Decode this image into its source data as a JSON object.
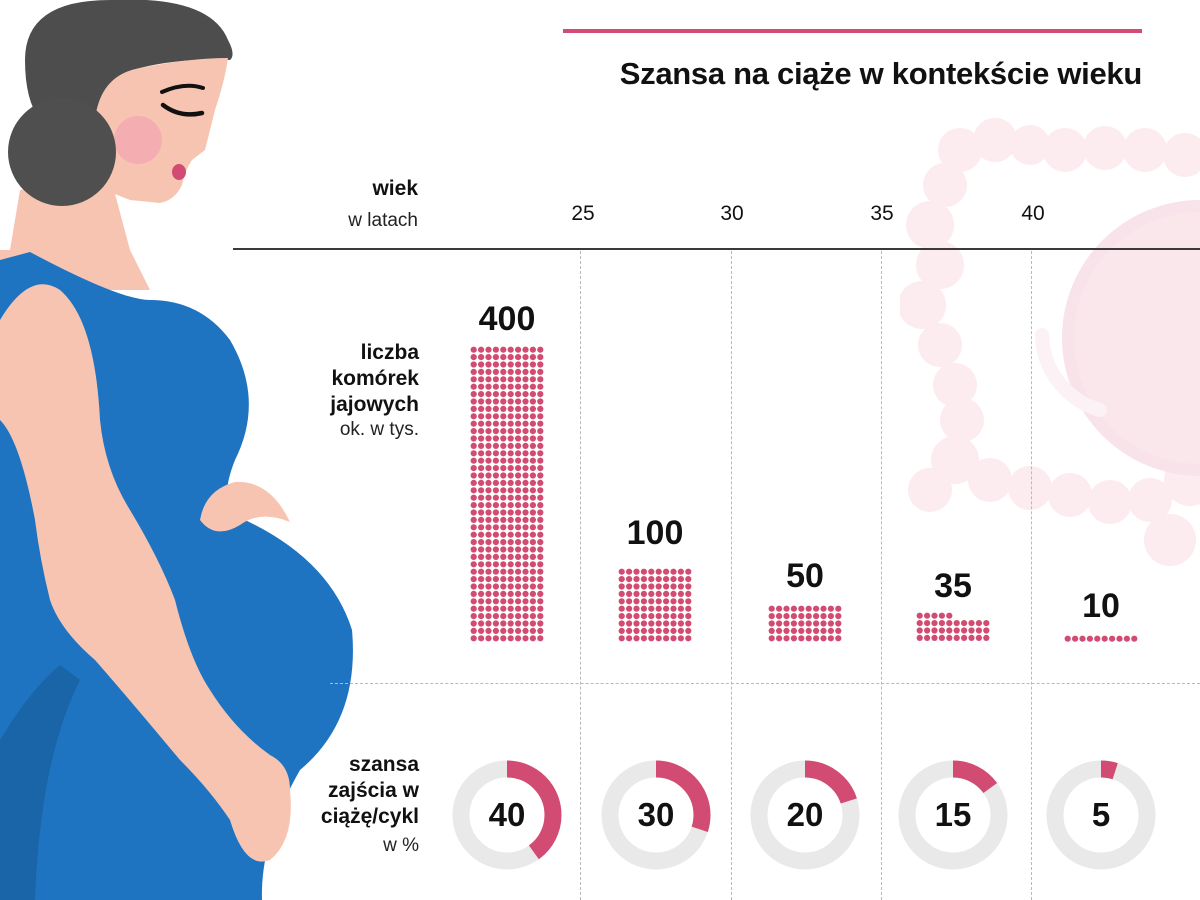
{
  "title": "Szansa na ciąże w kontekście wieku",
  "colors": {
    "accent": "#d14b72",
    "donut_track": "#e9e9e9",
    "dress": "#1e74c1",
    "dress_shadow": "#1a64a8",
    "skin": "#f7c4b2",
    "hair": "#4d4d4d",
    "egg_bg": "#fbe6ec"
  },
  "header": {
    "age_label_bold": "wiek",
    "age_label_sub": "w latach",
    "ages": [
      "25",
      "30",
      "35",
      "40"
    ]
  },
  "rows": {
    "eggs": {
      "label_lines": [
        "liczba",
        "komórek",
        "jajowych"
      ],
      "sub": "ok. w tys."
    },
    "chance": {
      "label_lines": [
        "szansa",
        "zajścia w",
        "ciążę/cykl"
      ],
      "sub": "w %"
    }
  },
  "chart_data": [
    {
      "type": "bar",
      "title": "liczba komórek jajowych (ok. w tys.)",
      "style": "pictogram dot grid, 10 dots per row, each dot = 1 thousand",
      "categories": [
        "<25",
        "25-30",
        "30-35",
        "35-40",
        ">40"
      ],
      "values": [
        400,
        100,
        50,
        35,
        10
      ],
      "labels": [
        "400",
        "100",
        "50",
        "35",
        "10"
      ],
      "xlabel": "wiek w latach",
      "age_ticks": [
        "25",
        "30",
        "35",
        "40"
      ],
      "unit": "tys."
    },
    {
      "type": "pie",
      "title": "szansa zajścia w ciążę/cykl (w %)",
      "style": "donut gauges",
      "categories": [
        "<25",
        "25-30",
        "30-35",
        "35-40",
        ">40"
      ],
      "values": [
        40,
        30,
        20,
        15,
        5
      ],
      "labels": [
        "40",
        "30",
        "20",
        "15",
        "5"
      ],
      "max": 100,
      "unit": "%"
    }
  ]
}
